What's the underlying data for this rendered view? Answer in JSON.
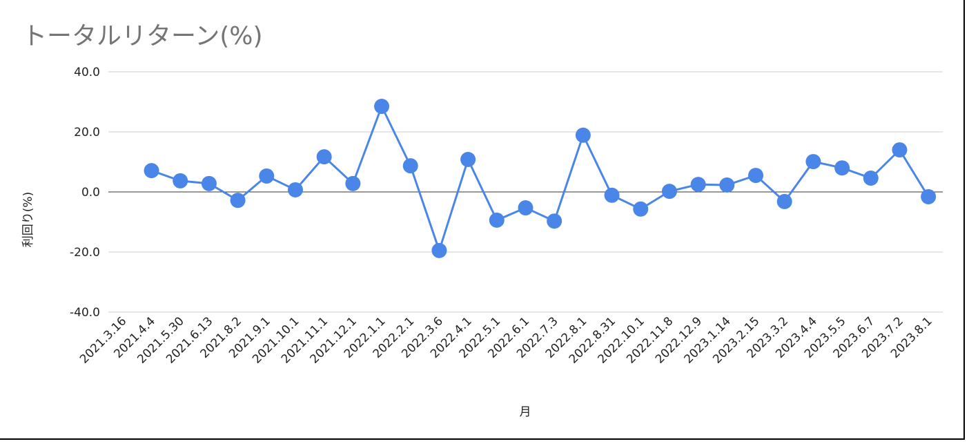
{
  "chart_data": {
    "type": "line",
    "title": "トータルリターン(%)",
    "x_label": "月",
    "y_label": "利回り(%)",
    "categories": [
      "2021.3.16",
      "2021.4.4",
      "2021.5.30",
      "2021.6.13",
      "2021.8.2",
      "2021.9.1",
      "2021.10.1",
      "2021.11.1",
      "2021.12.1",
      "2022.1.1",
      "2022.2.1",
      "2022.3.6",
      "2022.4.1",
      "2022.5.1",
      "2022.6.1",
      "2022.7.3",
      "2022.8.1",
      "2022.8.31",
      "2022.10.1",
      "2022.11.8",
      "2022.12.9",
      "2023.1.14",
      "2023.2.15",
      "2023.3.2",
      "2023.4.4",
      "2023.5.5",
      "2023.6.7",
      "2023.7.2",
      "2023.8.1"
    ],
    "series": [
      {
        "name": "利回り(%)",
        "color": "#4a86e8",
        "values": [
          null,
          7.1,
          3.7,
          2.8,
          -2.8,
          5.3,
          0.7,
          11.7,
          2.8,
          28.5,
          8.7,
          -19.5,
          10.8,
          -9.4,
          -5.3,
          -9.7,
          18.9,
          -1.1,
          -5.7,
          0.2,
          2.5,
          2.3,
          5.5,
          -3.2,
          10.1,
          8.0,
          4.6,
          14.0,
          -1.6
        ]
      }
    ],
    "ylim": [
      -40,
      40
    ],
    "yticks": [
      {
        "value": -40,
        "label": "-40.0"
      },
      {
        "value": -20,
        "label": "-20.0"
      },
      {
        "value": 0,
        "label": "0.0"
      },
      {
        "value": 20,
        "label": "20.0"
      },
      {
        "value": 40,
        "label": "40.0"
      }
    ],
    "grid": true
  }
}
